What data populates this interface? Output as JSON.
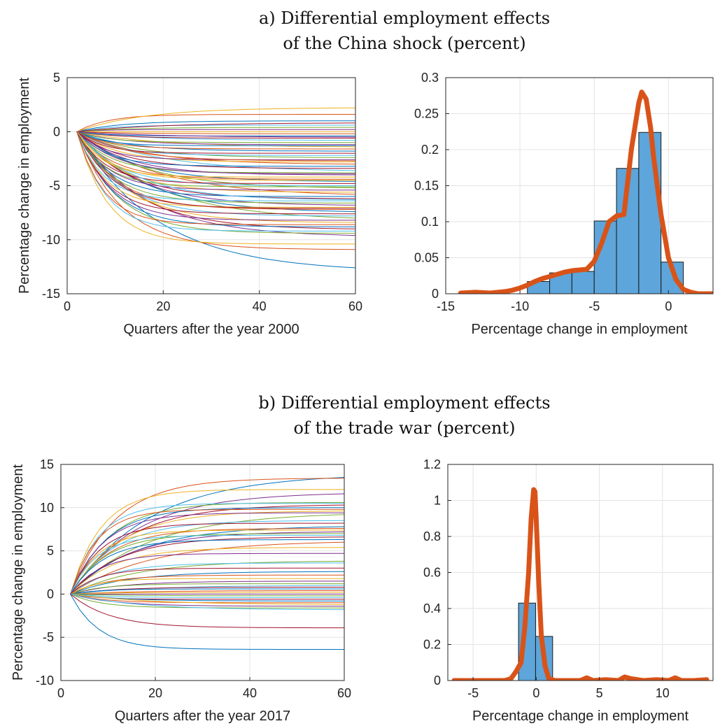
{
  "panels": [
    {
      "title_line1": "a) Differential employment effects",
      "title_line2": "of the China shock (percent)"
    },
    {
      "title_line1": "b) Differential employment effects",
      "title_line2": "of the trade war (percent)"
    }
  ],
  "colors": {
    "series_palette": [
      "#0072BD",
      "#D95319",
      "#EDB120",
      "#7E2F8E",
      "#77AC30",
      "#4DBEEE",
      "#A2142F"
    ],
    "histogram_bar": "#5DA5DA",
    "density_curve": "#D95319",
    "grid": "#e3e3e3",
    "axis": "#262626"
  },
  "chart_data": [
    {
      "type": "line",
      "xlabel": "Quarters after the year 2000",
      "ylabel": "Percentage change in employment",
      "xlim": [
        0,
        60
      ],
      "ylim": [
        -15,
        5
      ],
      "xticks": [
        0,
        20,
        40,
        60
      ],
      "yticks": [
        -15,
        -10,
        -5,
        0,
        5
      ],
      "grid": true,
      "series_start_quarter": 2,
      "endpoints": [
        -12.6,
        -10.9,
        -10.4,
        -9.6,
        -9.4,
        -9.2,
        -9.0,
        -8.8,
        -8.6,
        -8.4,
        -8.2,
        -8.0,
        -7.8,
        -7.6,
        -7.4,
        -7.2,
        -7.0,
        -6.8,
        -6.6,
        -6.4,
        -6.2,
        -6.0,
        -5.8,
        -5.6,
        -5.4,
        -5.2,
        -5.0,
        -4.8,
        -4.6,
        -4.4,
        -4.2,
        -4.0,
        -3.8,
        -3.6,
        -3.4,
        -3.2,
        -3.0,
        -2.8,
        -2.6,
        -2.4,
        -2.2,
        -2.0,
        -1.8,
        -1.6,
        -1.4,
        -1.2,
        -1.0,
        -0.8,
        -0.6,
        -0.4,
        -0.2,
        0.0,
        0.2,
        0.4,
        0.6,
        0.8,
        1.0,
        1.6,
        2.2,
        -3.9,
        -5.1,
        -6.3,
        -7.1,
        -1.3,
        -2.7,
        -4.5,
        -0.5
      ]
    },
    {
      "type": "bar",
      "xlabel": "Percentage change in employment",
      "ylabel": "",
      "xlim": [
        -15,
        3
      ],
      "ylim": [
        0,
        0.3
      ],
      "xticks": [
        -15,
        -10,
        -5,
        0
      ],
      "yticks": [
        0,
        0.05,
        0.1,
        0.15,
        0.2,
        0.25,
        0.3
      ],
      "ytick_labels": [
        "0",
        "0.05",
        "0.1",
        "0.15",
        "0.2",
        "0.25",
        "0.3"
      ],
      "grid": true,
      "bins": [
        {
          "from": -9.5,
          "to": -8.0,
          "value": 0.017
        },
        {
          "from": -8.0,
          "to": -6.5,
          "value": 0.029
        },
        {
          "from": -6.5,
          "to": -5.0,
          "value": 0.031
        },
        {
          "from": -5.0,
          "to": -3.5,
          "value": 0.101
        },
        {
          "from": -3.5,
          "to": -2.0,
          "value": 0.174
        },
        {
          "from": -2.0,
          "to": -0.5,
          "value": 0.224
        },
        {
          "from": -0.5,
          "to": 1.0,
          "value": 0.044
        }
      ],
      "density": {
        "x": [
          -14,
          -13,
          -12,
          -11,
          -10.5,
          -10,
          -9.5,
          -9,
          -8.5,
          -8,
          -7.5,
          -7,
          -6.5,
          -6,
          -5.5,
          -5,
          -4.5,
          -4,
          -3.5,
          -3,
          -2.5,
          -2,
          -1.8,
          -1.5,
          -1.2,
          -1,
          -0.5,
          0,
          0.5,
          1,
          1.5,
          2,
          2.5,
          3
        ],
        "y": [
          0.001,
          0.002,
          0.001,
          0.003,
          0.005,
          0.008,
          0.012,
          0.017,
          0.021,
          0.024,
          0.027,
          0.03,
          0.032,
          0.033,
          0.034,
          0.045,
          0.07,
          0.1,
          0.108,
          0.11,
          0.2,
          0.265,
          0.28,
          0.27,
          0.23,
          0.19,
          0.11,
          0.05,
          0.02,
          0.006,
          0.002,
          0.0,
          0.0,
          0.0
        ]
      }
    },
    {
      "type": "line",
      "xlabel": "Quarters after the year 2017",
      "ylabel": "Percentage change in employment",
      "xlim": [
        0,
        60
      ],
      "ylim": [
        -10,
        15
      ],
      "xticks": [
        0,
        20,
        40,
        60
      ],
      "yticks": [
        -10,
        -5,
        0,
        5,
        10,
        15
      ],
      "grid": true,
      "series_start_quarter": 2,
      "endpoints": [
        13.5,
        13.4,
        12.1,
        11.6,
        10.6,
        10.5,
        10.3,
        10.0,
        9.8,
        9.6,
        9.4,
        9.2,
        8.5,
        8.2,
        7.8,
        7.6,
        7.4,
        7.2,
        7.0,
        6.8,
        6.6,
        6.3,
        6.0,
        5.4,
        4.7,
        3.8,
        3.6,
        3.0,
        2.6,
        2.2,
        1.8,
        1.5,
        1.2,
        1.0,
        0.8,
        0.6,
        0.4,
        0.2,
        0.0,
        -0.2,
        -0.4,
        -0.6,
        -0.8,
        -1.0,
        -1.2,
        -1.4,
        -1.6,
        -1.8,
        -3.9,
        -6.4
      ]
    },
    {
      "type": "bar",
      "xlabel": "Percentage change in employment",
      "ylabel": "",
      "xlim": [
        -7,
        14
      ],
      "ylim": [
        0,
        1.2
      ],
      "xticks": [
        -5,
        0,
        5,
        10
      ],
      "yticks": [
        0,
        0.2,
        0.4,
        0.6,
        0.8,
        1,
        1.2
      ],
      "ytick_labels": [
        "0",
        "0.2",
        "0.4",
        "0.6",
        "0.8",
        "1",
        "1.2"
      ],
      "grid": true,
      "bins": [
        {
          "from": -1.4,
          "to": -0.05,
          "value": 0.43
        },
        {
          "from": -0.05,
          "to": 1.3,
          "value": 0.245
        }
      ],
      "density": {
        "x": [
          -6.5,
          -5.5,
          -4.5,
          -3.5,
          -2.5,
          -2,
          -1.6,
          -1.2,
          -0.9,
          -0.6,
          -0.4,
          -0.2,
          -0.1,
          0.0,
          0.2,
          0.4,
          0.7,
          1.0,
          1.5,
          2.5,
          3.5,
          4.0,
          4.5,
          5.5,
          6.5,
          7.0,
          7.5,
          8.5,
          9.5,
          10.5,
          11.0,
          11.5,
          12.5,
          13.5
        ],
        "y": [
          0.0,
          0.0,
          0.0,
          0.0,
          0.0,
          0.01,
          0.05,
          0.1,
          0.3,
          0.6,
          0.9,
          1.06,
          1.05,
          0.9,
          0.55,
          0.25,
          0.08,
          0.01,
          0.0,
          0.0,
          0.0,
          0.015,
          0.0,
          0.005,
          0.0,
          0.02,
          0.01,
          0.0,
          0.005,
          0.0,
          0.015,
          0.0,
          0.0,
          0.005
        ]
      }
    }
  ]
}
